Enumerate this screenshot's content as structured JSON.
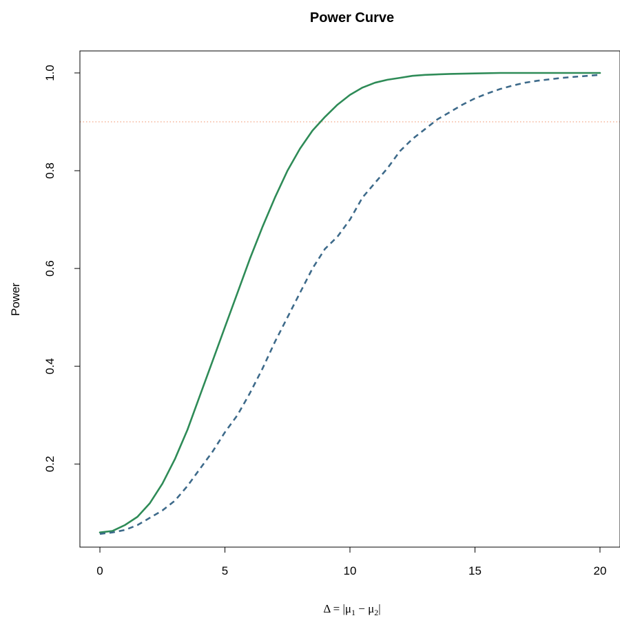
{
  "chart_data": {
    "type": "line",
    "title": "Power Curve",
    "xlabel": "Δ = |μ1 − μ2|",
    "xlabel_parts": {
      "delta": "Δ",
      "eq": " = |",
      "mu": "μ",
      "sub1": "1",
      "minus": " − ",
      "sub2": "2",
      "close": "|"
    },
    "ylabel": "Power",
    "xlim": [
      -0.8,
      20.8
    ],
    "ylim": [
      0.03,
      1.045
    ],
    "xticks": [
      0,
      5,
      10,
      15,
      20
    ],
    "xtick_labels": [
      "0",
      "5",
      "10",
      "15",
      "20"
    ],
    "yticks": [
      0.2,
      0.4,
      0.6,
      0.8,
      1.0
    ],
    "ytick_labels": [
      "0.2",
      "0.4",
      "0.6",
      "0.8",
      "1.0"
    ],
    "grid": false,
    "reference_line": {
      "y": 0.9,
      "color": "#F4A582",
      "style": "dotted"
    },
    "series": [
      {
        "color": "#2E8B57",
        "style": "solid",
        "x": [
          0,
          0.5,
          1,
          1.5,
          2,
          2.5,
          3,
          3.5,
          4,
          4.5,
          5,
          5.5,
          6,
          6.5,
          7,
          7.5,
          8,
          8.5,
          9,
          9.5,
          10,
          10.5,
          11,
          11.5,
          12,
          12.5,
          13,
          14,
          15,
          16,
          17,
          18,
          19,
          20
        ],
        "y": [
          0.06,
          0.063,
          0.075,
          0.092,
          0.12,
          0.16,
          0.21,
          0.27,
          0.34,
          0.41,
          0.48,
          0.55,
          0.62,
          0.685,
          0.745,
          0.8,
          0.845,
          0.882,
          0.91,
          0.935,
          0.955,
          0.97,
          0.98,
          0.986,
          0.99,
          0.994,
          0.996,
          0.998,
          0.999,
          1.0,
          1.0,
          1.0,
          1.0,
          1.0
        ]
      },
      {
        "color": "#3D6A8A",
        "style": "dashed",
        "x": [
          0,
          0.5,
          1,
          1.5,
          2,
          2.5,
          3,
          3.5,
          4,
          4.5,
          5,
          5.5,
          6,
          6.5,
          7,
          7.5,
          8,
          8.5,
          9,
          9.5,
          10,
          10.5,
          11,
          11.5,
          12,
          12.5,
          13,
          13.5,
          14,
          14.5,
          15,
          15.5,
          16,
          16.5,
          17,
          17.5,
          18,
          18.5,
          19,
          19.5,
          20
        ],
        "y": [
          0.057,
          0.06,
          0.065,
          0.075,
          0.09,
          0.105,
          0.125,
          0.155,
          0.19,
          0.225,
          0.265,
          0.3,
          0.345,
          0.395,
          0.45,
          0.5,
          0.55,
          0.6,
          0.64,
          0.665,
          0.7,
          0.745,
          0.775,
          0.805,
          0.84,
          0.865,
          0.885,
          0.905,
          0.92,
          0.935,
          0.948,
          0.958,
          0.967,
          0.974,
          0.98,
          0.984,
          0.987,
          0.99,
          0.992,
          0.994,
          0.996
        ]
      }
    ]
  }
}
